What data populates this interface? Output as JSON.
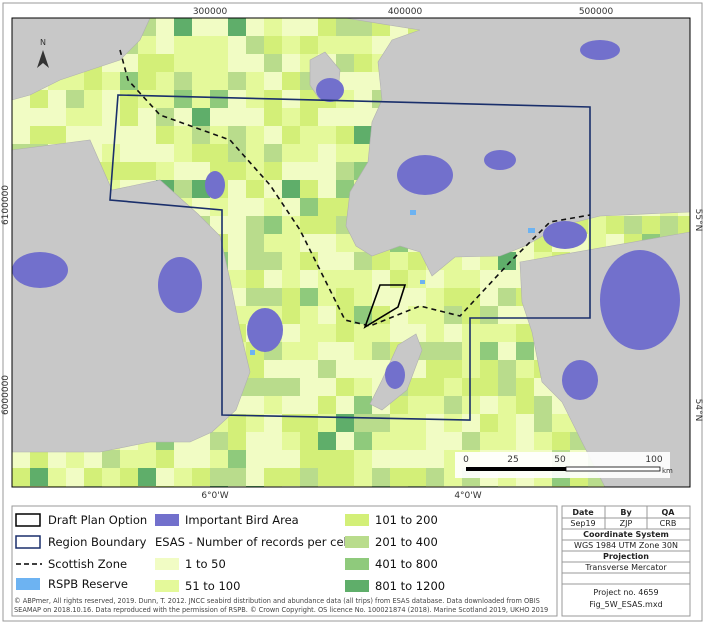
{
  "map": {
    "north_label": "N",
    "x_ticks_top": [
      "300000",
      "400000",
      "500000"
    ],
    "x_ticks_bottom": [
      "6°0'W",
      "4°0'W"
    ],
    "y_ticks_left": [
      "6100000",
      "6000000"
    ],
    "y_ticks_right": [
      "55°N",
      "54°N"
    ],
    "scale_bar": {
      "labels": [
        "0",
        "25",
        "50",
        "100"
      ],
      "unit": "km"
    }
  },
  "legend": {
    "draft_plan_option": "Draft Plan Option",
    "region_boundary": "Region Boundary",
    "scottish_zone": "Scottish Zone",
    "rspb_reserve": "RSPB Reserve",
    "important_bird_area": "Important Bird Area",
    "esas_title": "ESAS - Number of records per cell",
    "esas_classes": [
      "1 to 50",
      "51 to 100",
      "101 to 200",
      "201 to 400",
      "401 to 800",
      "801 to 1200"
    ]
  },
  "info": {
    "headers": [
      "Date",
      "By",
      "QA"
    ],
    "values": [
      "Sep19",
      "ZJP",
      "CRB"
    ],
    "coordinate_system_title": "Coordinate System",
    "coordinate_system": "WGS 1984 UTM Zone 30N",
    "projection_title": "Projection",
    "projection": "Transverse Mercator",
    "project_no": "Project no. 4659",
    "file": "Fig_5W_ESAS.mxd"
  },
  "copyright": "© ABPmer, All rights reserved, 2019. Dunn, T. 2012. JNCC seabird distribution and abundance data (all trips) from ESAS database. Data downloaded from OBIS SEAMAP on 2018.10.16. Data reproduced with the permission of RSPB. © Crown Copyright. OS licence No. 100021874 (2018). Marine Scotland 2019, UKHO 2019"
}
